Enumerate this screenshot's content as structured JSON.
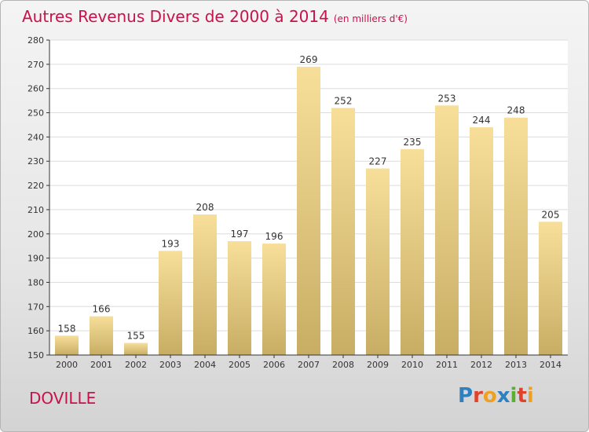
{
  "header": {
    "title": "Autres Revenus Divers de 2000 à 2014",
    "subtitle": "(en milliers d'€)"
  },
  "footer": {
    "commune": "DOVILLE",
    "logo": {
      "text": "Proxiti",
      "letters": [
        {
          "ch": "P",
          "color": "#2f80c0"
        },
        {
          "ch": "r",
          "color": "#e2412a"
        },
        {
          "ch": "o",
          "color": "#f0a020"
        },
        {
          "ch": "x",
          "color": "#2f80c0"
        },
        {
          "ch": "i",
          "color": "#5ab030"
        },
        {
          "ch": "t",
          "color": "#e2412a"
        },
        {
          "ch": "i",
          "color": "#f0a020"
        }
      ]
    }
  },
  "colors": {
    "title": "#c8124c",
    "bar_top": "#f7df9a",
    "bar_bottom": "#c8ad64",
    "grid": "#dcdcdc",
    "axis": "#333333"
  },
  "chart_data": {
    "type": "bar",
    "categories": [
      "2000",
      "2001",
      "2002",
      "2003",
      "2004",
      "2005",
      "2006",
      "2007",
      "2008",
      "2009",
      "2010",
      "2011",
      "2012",
      "2013",
      "2014"
    ],
    "values": [
      158,
      166,
      155,
      193,
      208,
      197,
      196,
      269,
      252,
      227,
      235,
      253,
      244,
      248,
      205
    ],
    "ylim": [
      150,
      280
    ],
    "yticks": [
      150,
      160,
      170,
      180,
      190,
      200,
      210,
      220,
      230,
      240,
      250,
      260,
      270,
      280
    ],
    "grid": true,
    "data_labels": true
  }
}
